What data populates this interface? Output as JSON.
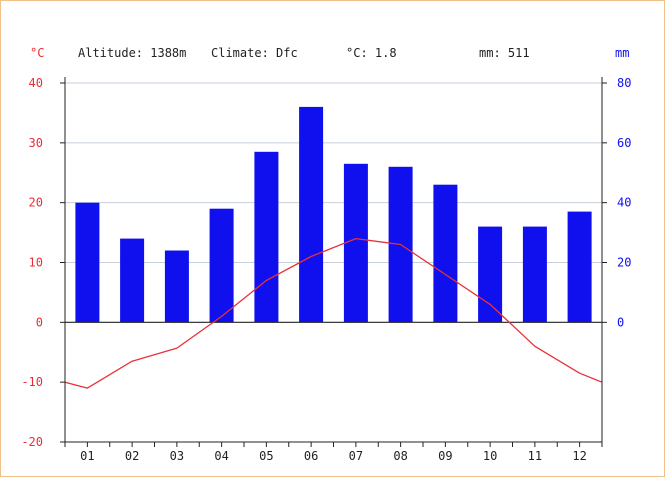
{
  "header": {
    "left_unit": "°C",
    "right_unit": "mm",
    "altitude": "Altitude: 1388m",
    "climate": "Climate: Dfc",
    "temp_summary": "°C: 1.8",
    "precip_summary": "mm: 511"
  },
  "colors": {
    "temperature": "#e8303a",
    "precipitation": "#1010ee",
    "grid": "#c8d0dc",
    "axis": "#222222",
    "frame": "#f0c08a"
  },
  "chart_data": {
    "type": "bar",
    "categories": [
      "01",
      "02",
      "03",
      "04",
      "05",
      "06",
      "07",
      "08",
      "09",
      "10",
      "11",
      "12"
    ],
    "x_ticks": [
      -0.5,
      0,
      0.5,
      1,
      1.5,
      2,
      2.5,
      3,
      3.5,
      4,
      4.5,
      5,
      5.5,
      6,
      6.5,
      7,
      7.5,
      8,
      8.5,
      9,
      9.5,
      10,
      10.5,
      11,
      11.5
    ],
    "series": [
      {
        "type": "bar",
        "axis": "right",
        "values": [
          40,
          28,
          24,
          38,
          57,
          72,
          53,
          52,
          46,
          32,
          32,
          37
        ]
      },
      {
        "type": "line",
        "axis": "left",
        "x": [
          -0.5,
          0,
          1,
          2,
          3,
          4,
          5,
          6,
          7,
          8,
          9,
          10,
          11,
          11.5
        ],
        "values": [
          -10,
          -11,
          -6.5,
          -4.3,
          1,
          7,
          11,
          14,
          13,
          8,
          3,
          -4,
          -8.5,
          -10
        ]
      }
    ],
    "left_axis": {
      "ylim": [
        -20,
        40
      ],
      "ticks": [
        -20,
        -10,
        0,
        10,
        20,
        30,
        40
      ],
      "color": "#e8303a"
    },
    "right_axis": {
      "ylim": [
        -40,
        80
      ],
      "ticks": [
        0,
        20,
        40,
        60,
        80
      ],
      "color": "#1010ee"
    },
    "grid_lines": [
      10,
      20,
      30,
      40
    ],
    "grid": true
  }
}
